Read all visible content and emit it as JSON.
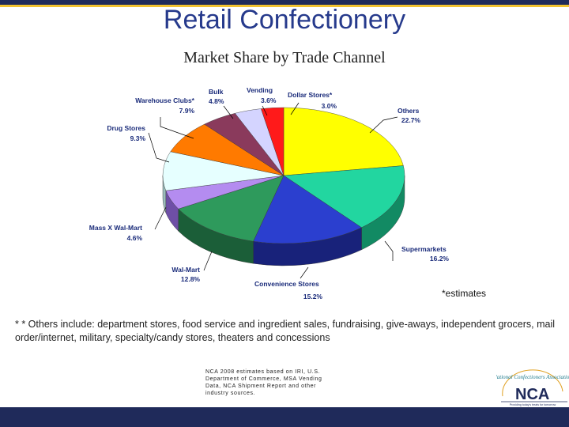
{
  "slide": {
    "title": "Retail Confectionery",
    "subtitle": "Market Share by Trade Channel",
    "estimates_note": "*estimates",
    "footnote": "* * Others include: department stores, food service and ingredient sales, fundraising, give-aways, independent grocers, mail order/internet, military, specialty/candy stores, theaters and concessions",
    "source": "NCA 2008 estimates based on IRI, U.S. Department of Commerce, MSA Vending Data, NCA Shipment Report and other industry sources.",
    "logo": {
      "text": "NCA",
      "arc_text": "National Confectioners Association",
      "tagline": "Providing today's treats for tomorrow"
    }
  },
  "colors": {
    "header_bar": "#1f2a5a",
    "accent": "#f2c230",
    "title": "#263a8c",
    "label": "#1a2b7a"
  },
  "chart_data": {
    "type": "pie",
    "title": "Market Share by Trade Channel",
    "style": "3d",
    "slices": [
      {
        "label": "Others",
        "value": 22.7,
        "display": "22.7%",
        "color": "#ffff00",
        "side": "#b8b800"
      },
      {
        "label": "Supermarkets",
        "value": 16.2,
        "display": "16.2%",
        "color": "#22d6a0",
        "side": "#128a63"
      },
      {
        "label": "Convenience Stores",
        "value": 15.2,
        "display": "15.2%",
        "color": "#2b3fcf",
        "side": "#18227a"
      },
      {
        "label": "Wal-Mart",
        "value": 12.8,
        "display": "12.8%",
        "color": "#2e9a5c",
        "side": "#1b5e38"
      },
      {
        "label": "Mass X Wal-Mart",
        "value": 4.6,
        "display": "4.6%",
        "color": "#b48cf0",
        "side": "#6e4fa6"
      },
      {
        "label": "Drug Stores",
        "value": 9.3,
        "display": "9.3%",
        "color": "#e6ffff",
        "side": "#9bbcbc"
      },
      {
        "label": "Warehouse Clubs*",
        "value": 7.9,
        "display": "7.9%",
        "color": "#ff7a00",
        "side": "#a84f00"
      },
      {
        "label": "Bulk",
        "value": 4.8,
        "display": "4.8%",
        "color": "#8a3a5c",
        "side": "#55223a"
      },
      {
        "label": "Vending",
        "value": 3.6,
        "display": "3.6%",
        "color": "#d4d4ff",
        "side": "#8f8fbb"
      },
      {
        "label": "Dollar Stores*",
        "value": 3.0,
        "display": "3.0%",
        "color": "#ff1a1a",
        "side": "#a00f0f"
      }
    ]
  }
}
